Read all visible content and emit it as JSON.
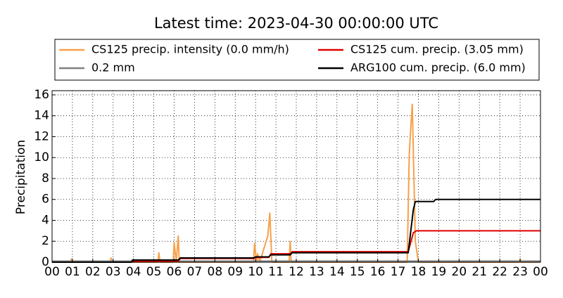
{
  "chart_data": {
    "type": "line",
    "title": "Latest time: 2023-04-30 00:00:00 UTC",
    "y_label": "Precipitation",
    "xlim": [
      0,
      24
    ],
    "xticks": [
      {
        "value": 0,
        "label": "00"
      },
      {
        "value": 1,
        "label": "01"
      },
      {
        "value": 2,
        "label": "02"
      },
      {
        "value": 3,
        "label": "03"
      },
      {
        "value": 4,
        "label": "04"
      },
      {
        "value": 5,
        "label": "05"
      },
      {
        "value": 6,
        "label": "06"
      },
      {
        "value": 7,
        "label": "07"
      },
      {
        "value": 8,
        "label": "08"
      },
      {
        "value": 9,
        "label": "09"
      },
      10,
      11,
      12,
      13,
      14,
      15,
      16,
      17,
      18,
      19,
      20,
      21,
      22,
      23,
      {
        "value": 24,
        "label": "00"
      }
    ],
    "ylim": [
      0,
      16.4
    ],
    "yticks": [
      0,
      2,
      4,
      6,
      8,
      10,
      12,
      14,
      16
    ],
    "grid": true,
    "series": [
      {
        "name": "CS125 precip. intensity (0.0 mm/h)",
        "color": "#f8a04a",
        "x": [
          0,
          0.9,
          0.95,
          1.0,
          2.85,
          2.9,
          2.95,
          5.2,
          5.25,
          5.3,
          5.95,
          6.0,
          6.1,
          6.2,
          6.25,
          9.9,
          9.95,
          10.05,
          10.1,
          10.2,
          10.6,
          10.7,
          10.8,
          11.65,
          11.7,
          11.75,
          17.45,
          17.55,
          17.6,
          17.7,
          17.85,
          18.0,
          22.95,
          23.0,
          23.05,
          24
        ],
        "values": [
          0,
          0,
          0.3,
          0,
          0,
          0.4,
          0,
          0,
          0.9,
          0,
          0,
          1.9,
          0,
          2.5,
          0,
          0,
          1.8,
          0,
          0.8,
          0,
          2.5,
          4.7,
          0,
          0,
          2.0,
          0,
          0,
          10.2,
          12.0,
          15.1,
          2.0,
          0,
          0,
          0.3,
          0,
          0
        ]
      },
      {
        "name": "0.2 mm",
        "color": "#808080",
        "x": [
          0,
          24
        ],
        "values": [
          0.1,
          0.1
        ]
      },
      {
        "name": "CS125 cum. precip. (3.05 mm)",
        "color": "#e00000",
        "x": [
          0,
          3.9,
          3.95,
          6.2,
          6.3,
          9.9,
          10.0,
          10.65,
          10.75,
          11.7,
          11.8,
          17.5,
          17.75,
          17.9,
          24
        ],
        "values": [
          0,
          0,
          0.1,
          0.1,
          0.35,
          0.35,
          0.45,
          0.45,
          0.8,
          0.8,
          1.0,
          1.0,
          2.8,
          3.0,
          3.0
        ]
      },
      {
        "name": "ARG100 cum. precip. (6.0 mm)",
        "color": "#000000",
        "x": [
          0,
          3.9,
          3.95,
          6.2,
          6.3,
          9.9,
          10.0,
          10.65,
          10.75,
          11.7,
          11.8,
          17.5,
          17.75,
          17.85,
          18.75,
          18.85,
          24
        ],
        "values": [
          0,
          0,
          0.2,
          0.2,
          0.4,
          0.4,
          0.5,
          0.5,
          0.7,
          0.7,
          0.9,
          0.9,
          5.0,
          5.8,
          5.8,
          6.0,
          6.0
        ]
      }
    ]
  }
}
